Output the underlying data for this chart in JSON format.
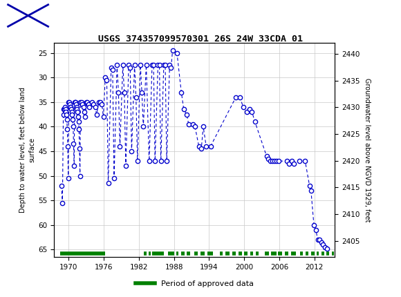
{
  "title": "USGS 374357099570301 26S 24W 33CDA 01",
  "ylabel_left": "Depth to water level, feet below land\nsurface",
  "ylabel_right": "Groundwater level above NGVD 1929, feet",
  "xlim": [
    1967.5,
    2015.5
  ],
  "ylim_left": [
    66.5,
    23.0
  ],
  "ylim_right": [
    2402.0,
    2442.0
  ],
  "xticks": [
    1970,
    1976,
    1982,
    1988,
    1994,
    2000,
    2006,
    2012
  ],
  "yticks_left": [
    25,
    30,
    35,
    40,
    45,
    50,
    55,
    60,
    65
  ],
  "yticks_right": [
    2440,
    2435,
    2430,
    2425,
    2420,
    2415,
    2410,
    2405
  ],
  "header_bg": "#006b54",
  "plot_bg": "#ffffff",
  "grid_color": "#c8c8c8",
  "data_color": "#0000cc",
  "approved_color": "#008000",
  "data_x": [
    1968.75,
    1968.92,
    1969.08,
    1969.17,
    1969.25,
    1969.33,
    1969.42,
    1969.5,
    1969.58,
    1969.67,
    1969.75,
    1969.83,
    1969.92,
    1970.0,
    1970.08,
    1970.17,
    1970.25,
    1970.33,
    1970.42,
    1970.5,
    1970.58,
    1970.67,
    1970.75,
    1970.83,
    1970.92,
    1971.0,
    1971.08,
    1971.17,
    1971.25,
    1971.33,
    1971.42,
    1971.5,
    1971.58,
    1971.67,
    1971.75,
    1971.83,
    1971.92,
    1972.0,
    1972.17,
    1972.33,
    1972.5,
    1972.67,
    1972.83,
    1973.0,
    1973.17,
    1973.33,
    1973.5,
    1974.0,
    1974.25,
    1974.5,
    1974.75,
    1975.17,
    1975.42,
    1975.67,
    1975.92,
    1976.25,
    1976.5,
    1976.75,
    1977.25,
    1977.5,
    1977.75,
    1978.25,
    1978.5,
    1978.75,
    1979.25,
    1979.5,
    1979.75,
    1980.25,
    1980.5,
    1980.75,
    1981.25,
    1981.5,
    1981.75,
    1982.25,
    1982.5,
    1982.75,
    1983.25,
    1983.75,
    1984.25,
    1984.5,
    1984.75,
    1985.25,
    1985.5,
    1985.75,
    1986.25,
    1986.5,
    1986.75,
    1987.25,
    1987.5,
    1987.75,
    1988.5,
    1989.25,
    1989.67,
    1990.17,
    1990.5,
    1991.17,
    1991.58,
    1992.25,
    1992.67,
    1993.0,
    1993.5,
    1994.25,
    1998.58,
    1999.25,
    1999.83,
    2000.42,
    2000.92,
    2001.33,
    2001.83,
    2003.83,
    2004.17,
    2004.5,
    2004.83,
    2005.17,
    2005.5,
    2005.83,
    2007.33,
    2007.67,
    2008.17,
    2008.5,
    2009.42,
    2010.42,
    2011.17,
    2011.42,
    2011.92,
    2012.25,
    2012.58,
    2012.92,
    2013.25,
    2013.5,
    2013.83,
    2014.17
  ],
  "data_y": [
    52.0,
    55.5,
    36.5,
    37.5,
    36.5,
    36.0,
    36.5,
    37.0,
    37.5,
    38.5,
    40.5,
    44.0,
    50.5,
    35.0,
    35.0,
    35.5,
    36.0,
    36.0,
    36.5,
    37.0,
    37.5,
    38.5,
    40.0,
    43.5,
    48.0,
    35.0,
    35.0,
    35.0,
    35.5,
    36.0,
    36.5,
    37.0,
    38.0,
    39.0,
    40.5,
    44.5,
    50.0,
    35.0,
    35.0,
    35.5,
    36.0,
    37.0,
    38.0,
    35.0,
    35.0,
    35.5,
    36.0,
    35.0,
    35.5,
    36.0,
    37.5,
    35.0,
    35.0,
    35.5,
    38.0,
    30.0,
    30.5,
    51.5,
    28.0,
    28.5,
    50.5,
    27.5,
    33.0,
    44.0,
    27.5,
    33.0,
    48.0,
    27.5,
    28.0,
    45.0,
    27.5,
    34.0,
    47.0,
    27.5,
    33.0,
    40.0,
    27.5,
    47.0,
    27.5,
    27.5,
    47.0,
    27.5,
    27.5,
    47.0,
    27.5,
    27.5,
    47.0,
    27.5,
    28.0,
    24.5,
    25.0,
    33.0,
    36.5,
    37.5,
    39.5,
    39.5,
    40.0,
    44.0,
    44.5,
    40.0,
    44.0,
    44.0,
    34.0,
    34.0,
    36.0,
    37.0,
    36.5,
    37.0,
    39.0,
    46.0,
    46.5,
    47.0,
    47.0,
    47.0,
    47.0,
    47.0,
    47.0,
    47.5,
    47.0,
    47.5,
    47.0,
    47.0,
    52.0,
    53.0,
    60.0,
    61.0,
    63.0,
    63.0,
    63.5,
    64.0,
    64.5,
    64.8
  ],
  "approved_segments": [
    [
      1968.5,
      1976.2
    ],
    [
      1982.8,
      1983.3
    ],
    [
      1983.7,
      1984.0
    ],
    [
      1984.3,
      1986.3
    ],
    [
      1987.0,
      1988.0
    ],
    [
      1988.4,
      1988.8
    ],
    [
      1989.2,
      1989.8
    ],
    [
      1990.2,
      1990.8
    ],
    [
      1991.5,
      1992.1
    ],
    [
      1992.5,
      1993.2
    ],
    [
      1993.7,
      1994.6
    ],
    [
      1995.8,
      1996.3
    ],
    [
      1996.8,
      1997.5
    ],
    [
      1998.0,
      1998.6
    ],
    [
      1999.0,
      1999.6
    ],
    [
      2000.0,
      2000.6
    ],
    [
      2001.0,
      2001.5
    ],
    [
      2002.0,
      2002.5
    ],
    [
      2003.5,
      2004.2
    ],
    [
      2004.6,
      2005.5
    ],
    [
      2005.8,
      2006.5
    ],
    [
      2007.0,
      2007.5
    ],
    [
      2008.0,
      2008.8
    ],
    [
      2009.5,
      2010.0
    ],
    [
      2010.5,
      2011.0
    ],
    [
      2011.5,
      2012.0
    ],
    [
      2012.4,
      2012.8
    ],
    [
      2013.2,
      2013.7
    ],
    [
      2014.0,
      2014.5
    ],
    [
      2015.0,
      2015.3
    ]
  ]
}
